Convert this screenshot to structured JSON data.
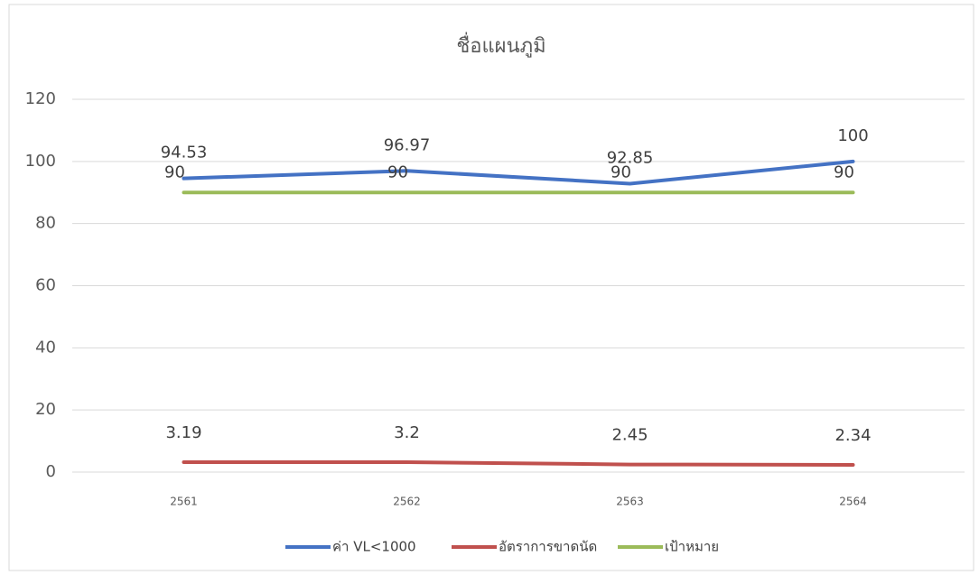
{
  "chart_data": {
    "type": "line",
    "title": "ชื่อแผนภูมิ",
    "categories": [
      "2561",
      "2562",
      "2563",
      "2564"
    ],
    "series": [
      {
        "name": "ค่า VL<1000",
        "color": "#4472c4",
        "values": [
          94.53,
          96.97,
          92.85,
          100
        ]
      },
      {
        "name": "อัตราการขาดนัด",
        "color": "#c0504d",
        "values": [
          3.19,
          3.2,
          2.45,
          2.34
        ]
      },
      {
        "name": "เป้าหมาย",
        "color": "#9bbb59",
        "values": [
          90,
          90,
          90,
          90
        ]
      }
    ],
    "ylim": [
      0,
      120
    ],
    "yticks": [
      0,
      20,
      40,
      60,
      80,
      100,
      120
    ],
    "grid": true,
    "legend": "bottom"
  }
}
